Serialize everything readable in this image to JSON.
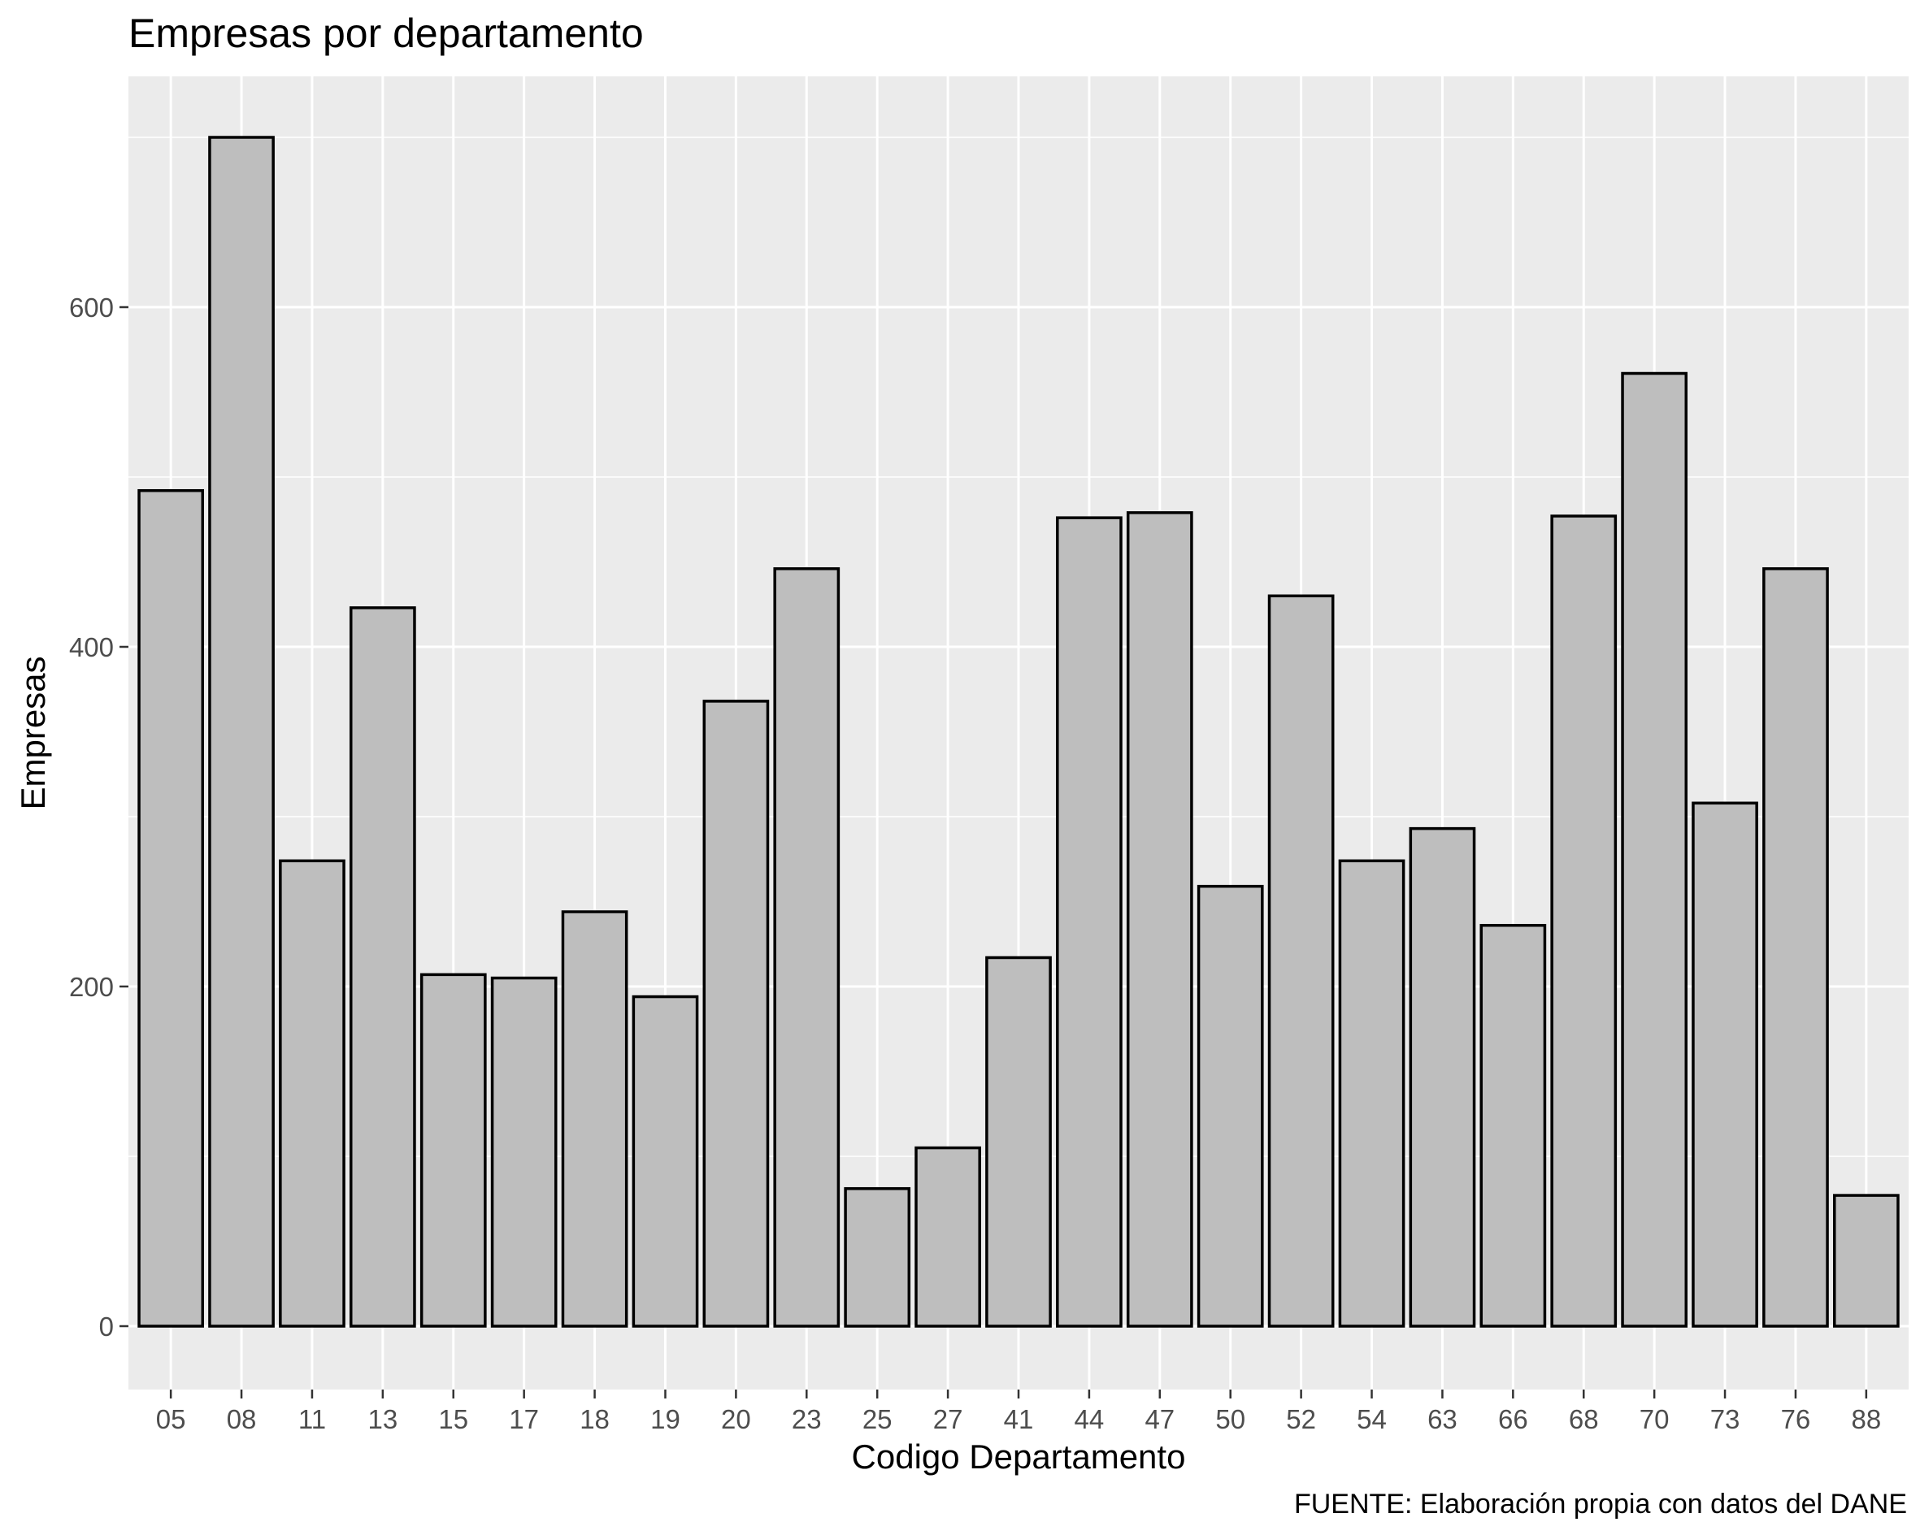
{
  "chart_data": {
    "type": "bar",
    "title": "Empresas por departamento",
    "xlabel": "Codigo Departamento",
    "ylabel": "Empresas",
    "caption": "FUENTE: Elaboración propia con datos del DANE",
    "categories": [
      "05",
      "08",
      "11",
      "13",
      "15",
      "17",
      "18",
      "19",
      "20",
      "23",
      "25",
      "27",
      "41",
      "44",
      "47",
      "50",
      "52",
      "54",
      "63",
      "66",
      "68",
      "70",
      "73",
      "76",
      "88"
    ],
    "values": [
      492,
      700,
      274,
      423,
      207,
      205,
      244,
      194,
      368,
      446,
      81,
      105,
      217,
      476,
      479,
      259,
      430,
      274,
      293,
      236,
      477,
      561,
      308,
      446,
      77
    ],
    "ylim": [
      -35,
      735
    ],
    "yticks": [
      0,
      200,
      400,
      600
    ],
    "yticklabels": [
      "0",
      "200",
      "400",
      "600"
    ],
    "grid": true,
    "legend": "none",
    "colors": {
      "panel_background": "#ebebeb",
      "bar_fill": "#bebebe",
      "bar_outline": "#000000",
      "grid": "#ffffff"
    }
  }
}
